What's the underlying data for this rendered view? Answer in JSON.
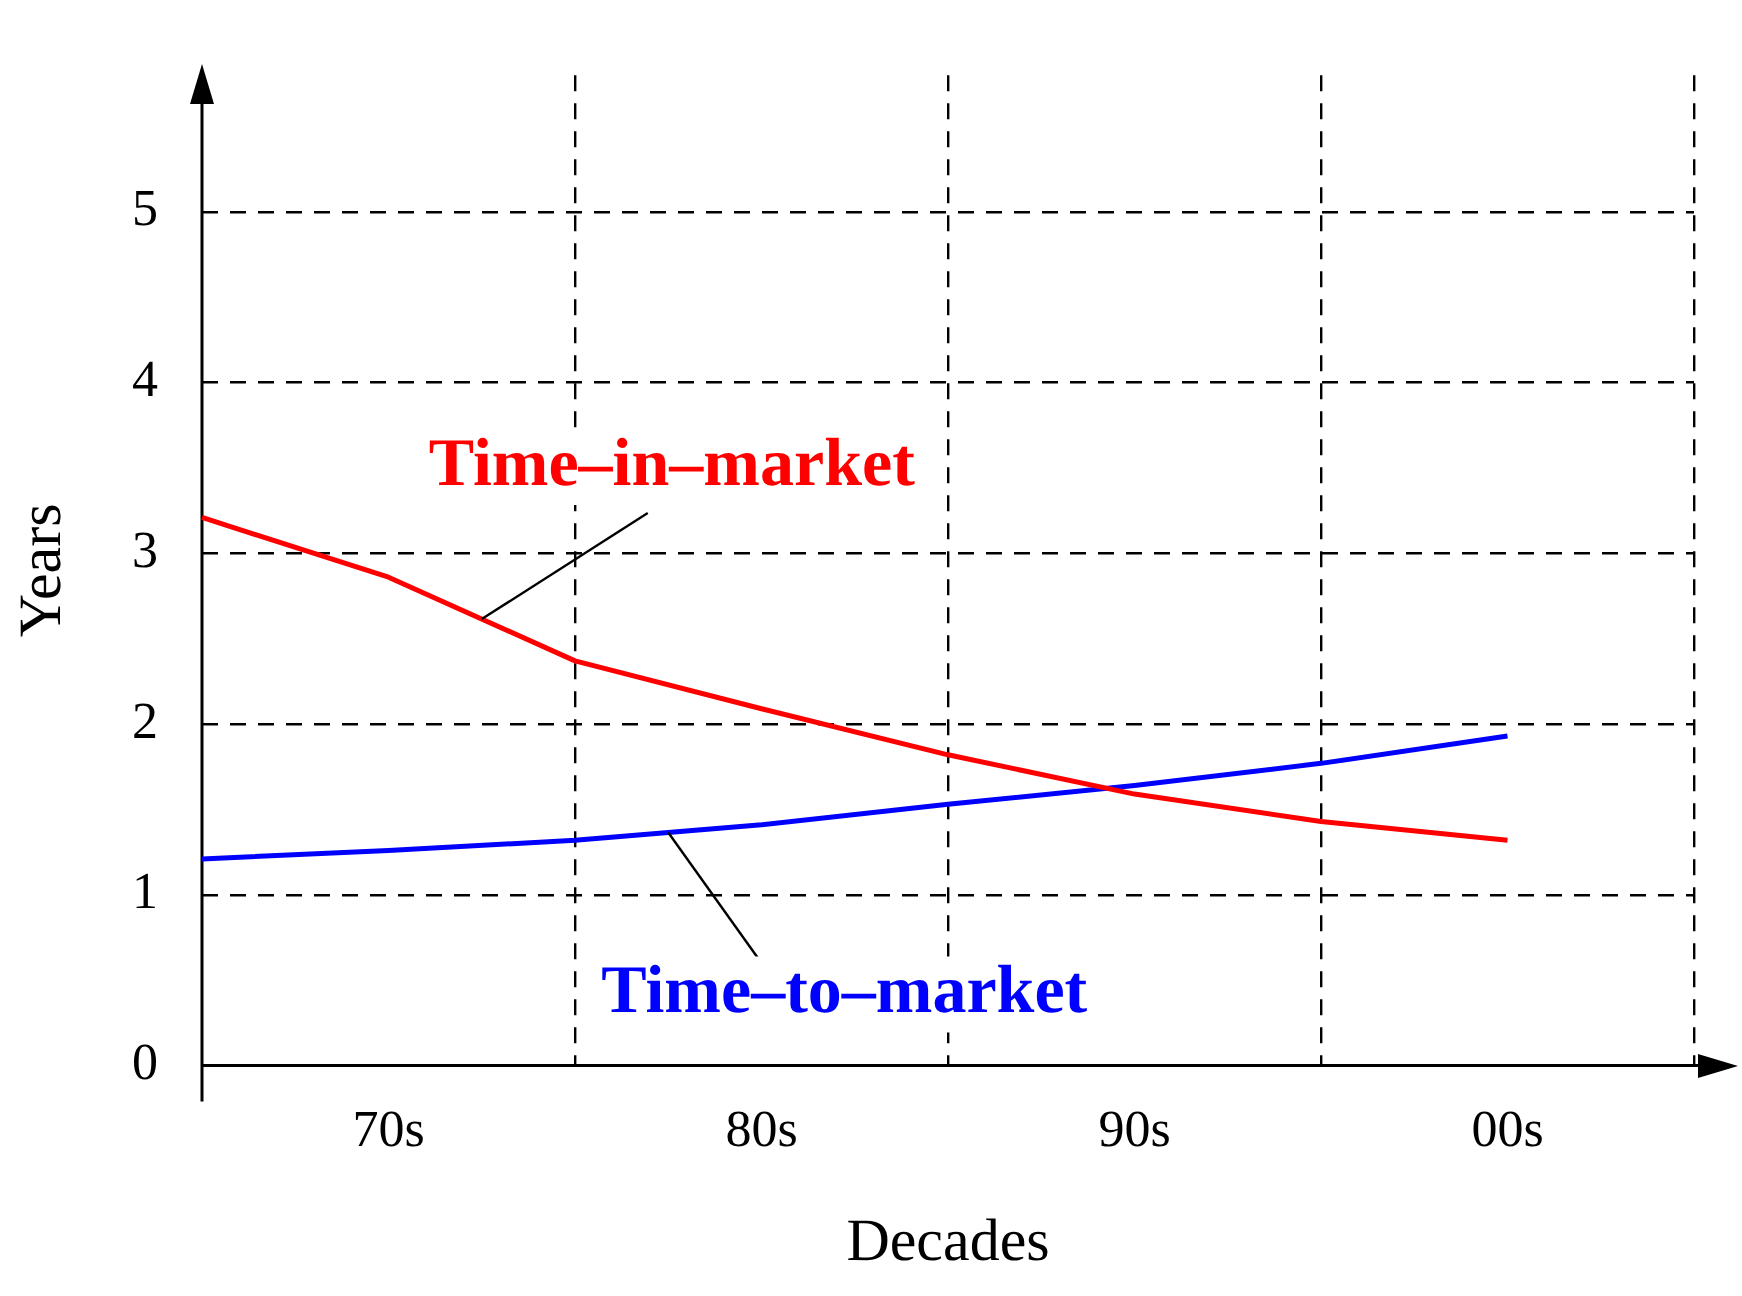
{
  "chart_data": {
    "type": "line",
    "xlabel": "Decades",
    "ylabel": "Years",
    "categories": [
      null,
      "70s",
      null,
      "80s",
      null,
      "90s",
      null,
      "00s",
      null
    ],
    "ylim": [
      0,
      5.8
    ],
    "yticks": [
      0,
      1,
      2,
      3,
      4,
      5
    ],
    "grid": true,
    "legend": false,
    "marker": "none",
    "line_style": "solid",
    "series": [
      {
        "name": "Time–in–market",
        "color": "#ff0000",
        "values": [
          3.21,
          2.86,
          2.37,
          2.09,
          1.82,
          1.59,
          1.43,
          1.32,
          null
        ]
      },
      {
        "name": "Time–to–market",
        "color": "#0000ff",
        "values": [
          1.21,
          1.26,
          1.32,
          1.41,
          1.53,
          1.64,
          1.77,
          1.93,
          null
        ]
      }
    ]
  }
}
